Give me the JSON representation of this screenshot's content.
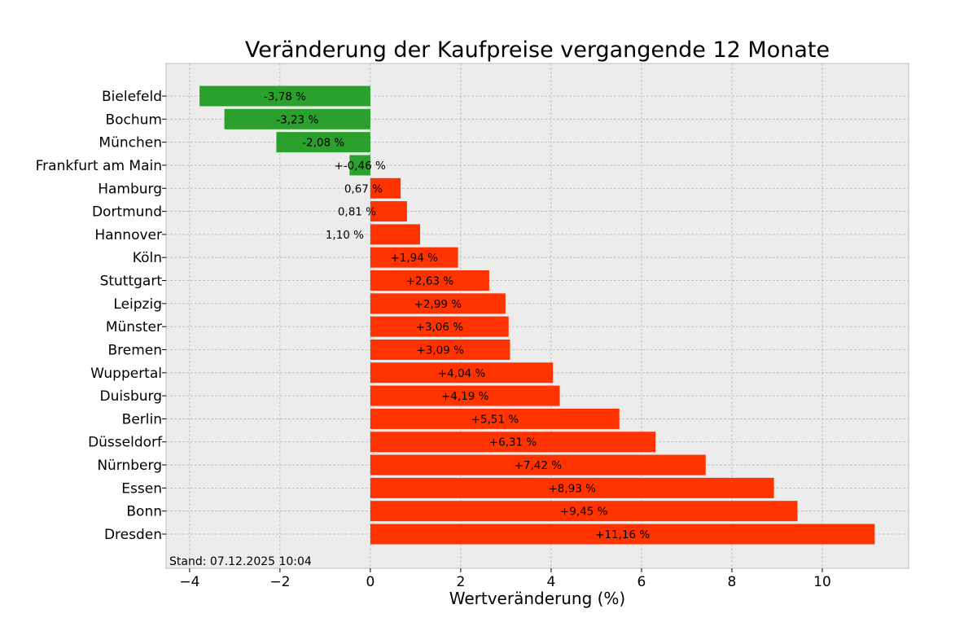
{
  "chart_data": {
    "type": "bar",
    "orientation": "horizontal",
    "title": "Veränderung der Kaufpreise vergangende 12 Monate",
    "xlabel": "Wertveränderung (%)",
    "ylabel": "",
    "xlim": [
      -4.52,
      11.91
    ],
    "xticks": [
      -4,
      -2,
      0,
      2,
      4,
      6,
      8,
      10
    ],
    "xtick_labels": [
      "−4",
      "−2",
      "0",
      "2",
      "4",
      "6",
      "8",
      "10"
    ],
    "grid": true,
    "categories": [
      "Bielefeld",
      "Bochum",
      "München",
      "Frankfurt am Main",
      "Hamburg",
      "Dortmund",
      "Hannover",
      "Köln",
      "Stuttgart",
      "Leipzig",
      "Münster",
      "Bremen",
      "Wuppertal",
      "Duisburg",
      "Berlin",
      "Düsseldorf",
      "Nürnberg",
      "Essen",
      "Bonn",
      "Dresden"
    ],
    "values": [
      -3.78,
      -3.23,
      -2.08,
      -0.46,
      0.67,
      0.81,
      1.1,
      1.94,
      2.63,
      2.99,
      3.06,
      3.09,
      4.04,
      4.19,
      5.51,
      6.31,
      7.42,
      8.93,
      9.45,
      11.16
    ],
    "data_labels": [
      "-3,78 %",
      "-3,23 %",
      "-2,08 %",
      "+-0,46 %",
      "0,67 %",
      "0,81 %",
      "1,10 %",
      "+1,94 %",
      "+2,63 %",
      "+2,99 %",
      "+3,06 %",
      "+3,09 %",
      "+4,04 %",
      "+4,19 %",
      "+5,51 %",
      "+6,31 %",
      "+7,42 %",
      "+8,93 %",
      "+9,45 %",
      "+11,16 %"
    ],
    "colors": {
      "negative": "#2ca02c",
      "positive": "#ff3300",
      "background": "#ececec"
    },
    "annotation": "Stand: 07.12.2025 10:04"
  }
}
